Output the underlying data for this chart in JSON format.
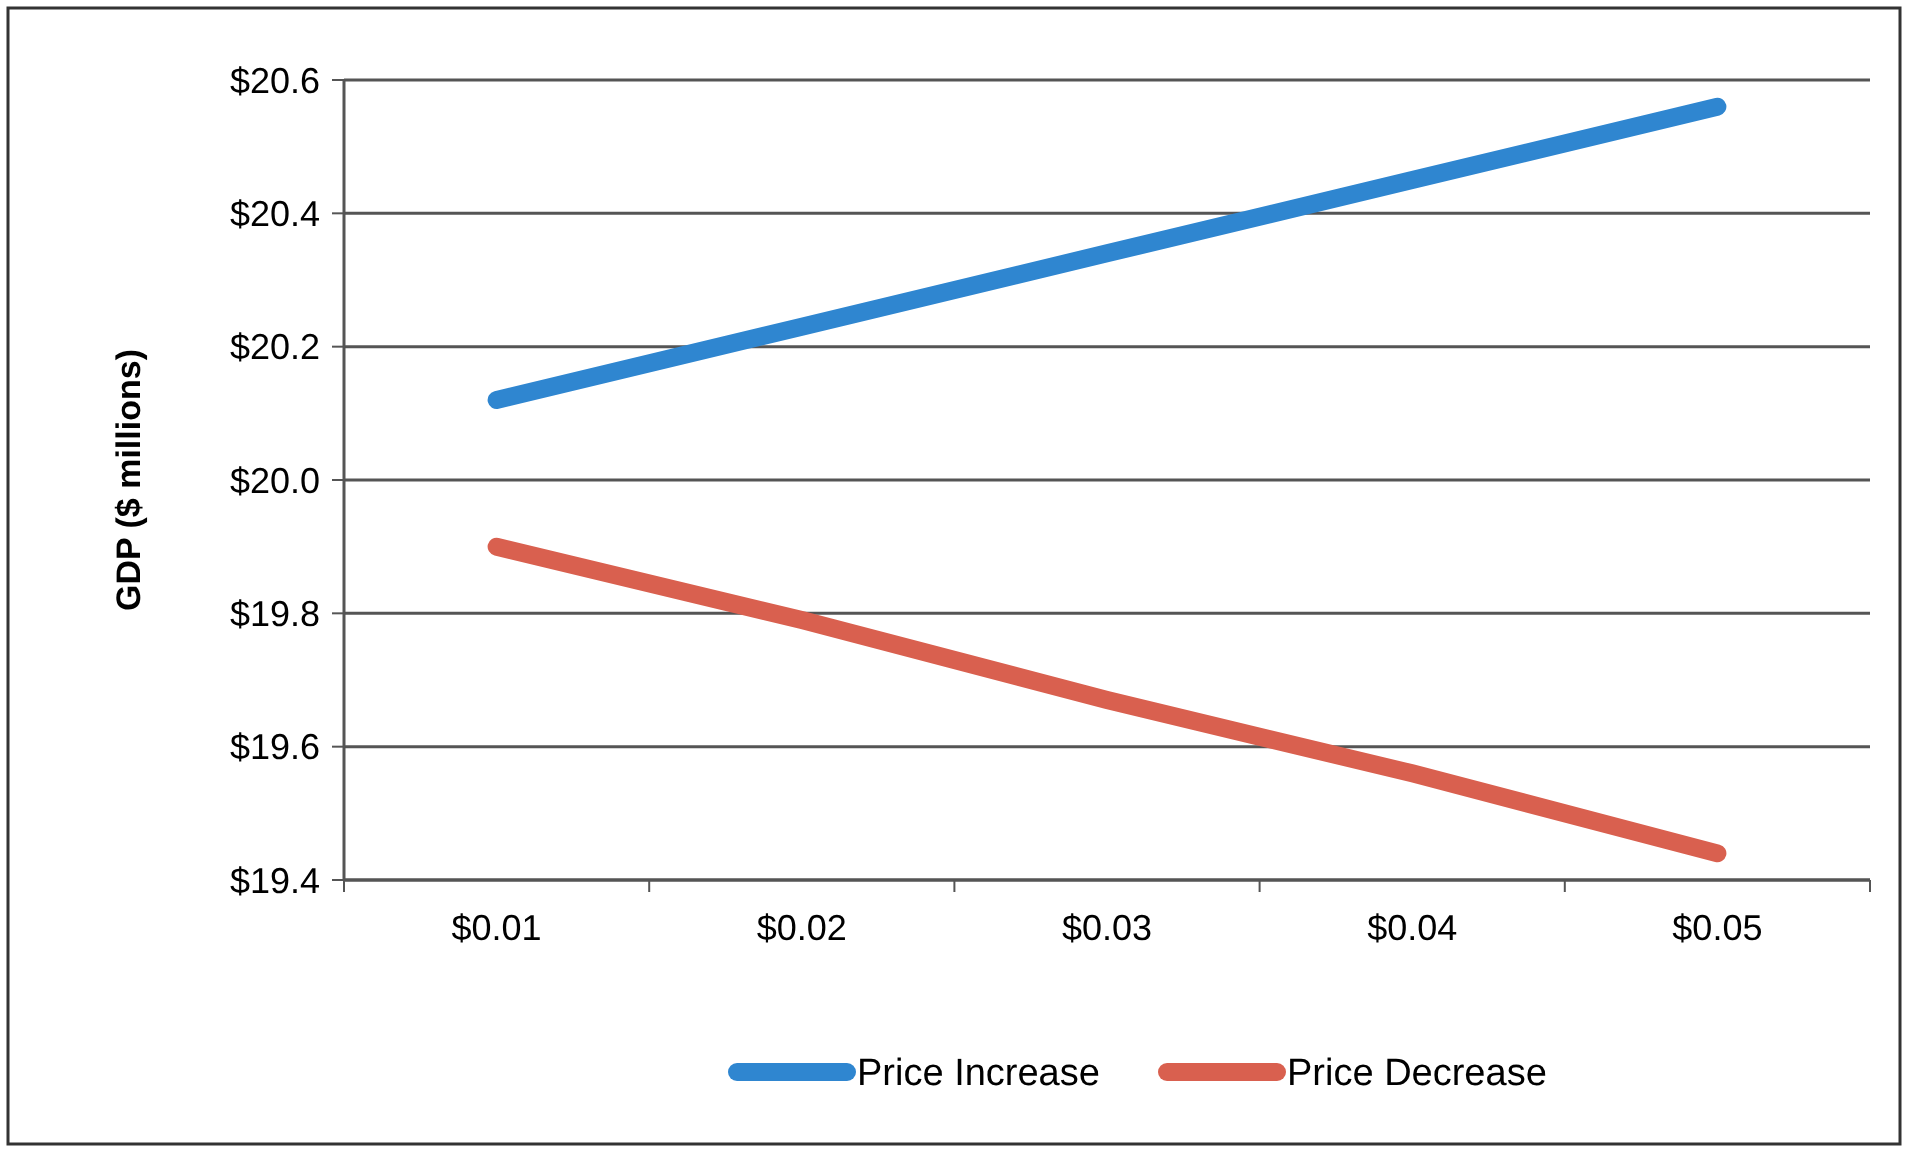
{
  "chart_data": {
    "type": "line",
    "ylabel": "GDP ($ millions)",
    "categories": [
      "$0.01",
      "$0.02",
      "$0.03",
      "$0.04",
      "$0.05"
    ],
    "series": [
      {
        "name": "Price Increase",
        "color": "#2f86d0",
        "values": [
          20.12,
          20.23,
          20.34,
          20.45,
          20.56
        ]
      },
      {
        "name": "Price Decrease",
        "color": "#d9604f",
        "values": [
          19.9,
          19.79,
          19.67,
          19.56,
          19.44
        ]
      }
    ],
    "ylim": [
      19.4,
      20.6
    ],
    "yticks": [
      {
        "value": 19.4,
        "label": "$19.4"
      },
      {
        "value": 19.6,
        "label": "$19.6"
      },
      {
        "value": 19.8,
        "label": "$19.8"
      },
      {
        "value": 20.0,
        "label": "$20.0"
      },
      {
        "value": 20.2,
        "label": "$20.2"
      },
      {
        "value": 20.4,
        "label": "$20.4"
      },
      {
        "value": 20.6,
        "label": "$20.6"
      }
    ],
    "grid": "y",
    "legend": "bottom",
    "marker": "none",
    "line_style": "solid"
  }
}
